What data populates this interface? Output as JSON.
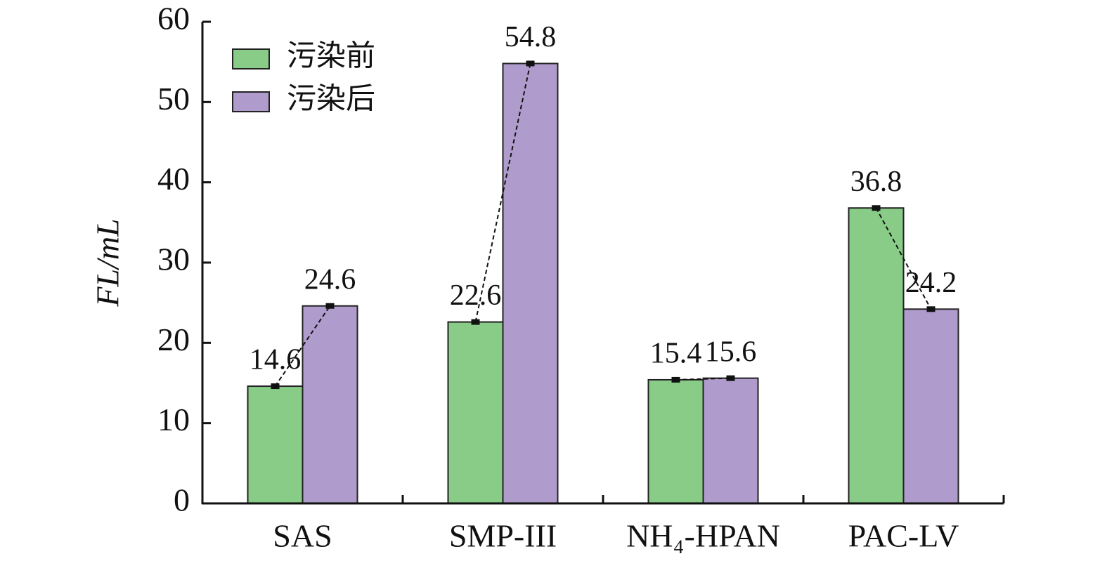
{
  "chart_data": {
    "type": "bar",
    "y_label": "FL/mL",
    "categories": [
      "SAS",
      "SMP-III",
      "NH₄-HPAN",
      "PAC-LV"
    ],
    "series": [
      {
        "name": "污染前",
        "color": "#88cc88",
        "values": [
          14.6,
          22.6,
          15.4,
          36.8
        ]
      },
      {
        "name": "污染后",
        "color": "#b09ccc",
        "values": [
          24.6,
          54.8,
          15.6,
          24.2
        ]
      }
    ],
    "ylim": [
      0,
      60
    ],
    "yticks": [
      0,
      10,
      20,
      30,
      40,
      50,
      60
    ],
    "legend": "upper left",
    "connect_lines": true
  }
}
